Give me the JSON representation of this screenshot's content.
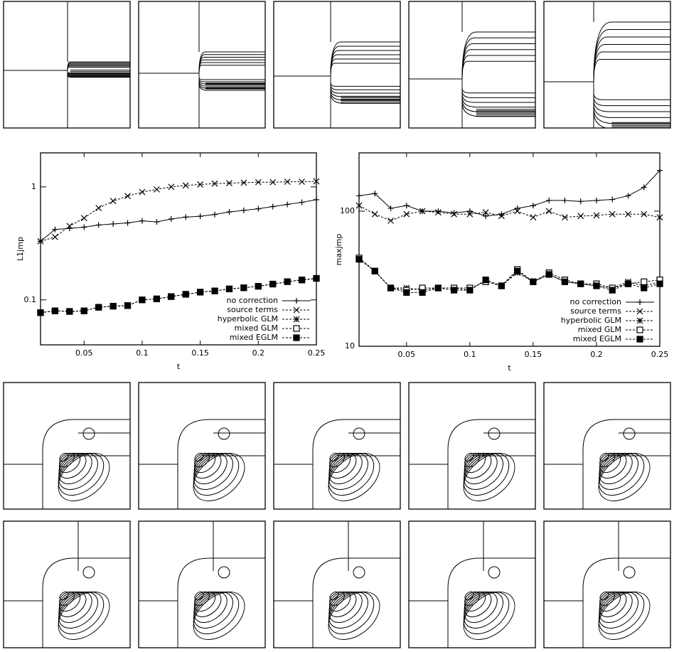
{
  "chart_data": [
    {
      "type": "line",
      "x_label": "t",
      "y_label": "L1jmp",
      "log_y": true,
      "legend": "lower right",
      "x": [
        0.0125,
        0.025,
        0.0375,
        0.05,
        0.0625,
        0.075,
        0.0875,
        0.1,
        0.1125,
        0.125,
        0.1375,
        0.15,
        0.1625,
        0.175,
        0.1875,
        0.2,
        0.2125,
        0.225,
        0.2375,
        0.25
      ],
      "xlim": [
        0.0125,
        0.25
      ],
      "xticks": [
        0.05,
        0.1,
        0.15,
        0.2,
        0.25
      ],
      "ylim": [
        0.04,
        2
      ],
      "yticks": [
        0.1,
        1
      ],
      "series": [
        {
          "name": "no correction",
          "color": "#000000",
          "marker": "plus",
          "line_style": "solid",
          "values": [
            0.33,
            0.42,
            0.43,
            0.44,
            0.46,
            0.47,
            0.48,
            0.5,
            0.49,
            0.52,
            0.54,
            0.55,
            0.57,
            0.6,
            0.62,
            0.64,
            0.67,
            0.7,
            0.73,
            0.77
          ]
        },
        {
          "name": "source terms",
          "color": "#000000",
          "marker": "x",
          "line_style": "dashed",
          "values": [
            0.33,
            0.36,
            0.45,
            0.53,
            0.65,
            0.75,
            0.83,
            0.9,
            0.95,
            1.0,
            1.03,
            1.05,
            1.07,
            1.08,
            1.09,
            1.1,
            1.1,
            1.11,
            1.11,
            1.12
          ]
        },
        {
          "name": "hyperbolic GLM",
          "color": "#000000",
          "marker": "star",
          "line_style": "dashed",
          "values": [
            0.077,
            0.08,
            0.079,
            0.08,
            0.086,
            0.088,
            0.089,
            0.1,
            0.102,
            0.107,
            0.112,
            0.117,
            0.12,
            0.125,
            0.128,
            0.132,
            0.138,
            0.145,
            0.15,
            0.155
          ]
        },
        {
          "name": "mixed GLM",
          "color": "#000000",
          "marker": "square-open",
          "line_style": "dashed",
          "values": [
            0.077,
            0.08,
            0.079,
            0.08,
            0.086,
            0.088,
            0.089,
            0.1,
            0.102,
            0.107,
            0.112,
            0.117,
            0.12,
            0.125,
            0.128,
            0.132,
            0.138,
            0.145,
            0.15,
            0.155
          ]
        },
        {
          "name": "mixed EGLM",
          "color": "#000000",
          "marker": "square-filled",
          "line_style": "dashed",
          "values": [
            0.077,
            0.08,
            0.079,
            0.08,
            0.086,
            0.088,
            0.089,
            0.1,
            0.102,
            0.107,
            0.112,
            0.117,
            0.12,
            0.125,
            0.128,
            0.132,
            0.138,
            0.145,
            0.15,
            0.155
          ]
        }
      ]
    },
    {
      "type": "line",
      "x_label": "t",
      "y_label": "maxjmp",
      "log_y": true,
      "legend": "lower right",
      "x": [
        0.0125,
        0.025,
        0.0375,
        0.05,
        0.0625,
        0.075,
        0.0875,
        0.1,
        0.1125,
        0.125,
        0.1375,
        0.15,
        0.1625,
        0.175,
        0.1875,
        0.2,
        0.2125,
        0.225,
        0.2375,
        0.25
      ],
      "xlim": [
        0.0125,
        0.25
      ],
      "xticks": [
        0.05,
        0.1,
        0.15,
        0.2,
        0.25
      ],
      "ylim": [
        10,
        270
      ],
      "yticks": [
        10,
        100
      ],
      "series": [
        {
          "name": "no correction",
          "color": "#000000",
          "marker": "plus",
          "line_style": "solid",
          "values": [
            130,
            135,
            105,
            110,
            100,
            100,
            97,
            100,
            92,
            95,
            105,
            110,
            120,
            120,
            118,
            120,
            122,
            130,
            150,
            200
          ]
        },
        {
          "name": "source terms",
          "color": "#000000",
          "marker": "x",
          "line_style": "dashed",
          "values": [
            110,
            95,
            85,
            95,
            100,
            98,
            95,
            95,
            98,
            92,
            100,
            90,
            100,
            90,
            92,
            93,
            95,
            95,
            95,
            90
          ]
        },
        {
          "name": "hyperbolic GLM",
          "color": "#000000",
          "marker": "star",
          "line_style": "dashed",
          "values": [
            45,
            36,
            27,
            27,
            26,
            27,
            27,
            26,
            31,
            28,
            35,
            30,
            34,
            30,
            29,
            28,
            27,
            30,
            28,
            30
          ]
        },
        {
          "name": "mixed GLM",
          "color": "#000000",
          "marker": "square-open",
          "line_style": "dashed",
          "values": [
            45,
            36,
            27,
            26,
            27,
            27,
            27,
            27,
            30,
            28,
            37,
            30,
            35,
            31,
            29,
            29,
            27,
            29,
            30,
            31
          ]
        },
        {
          "name": "mixed EGLM",
          "color": "#000000",
          "marker": "square-filled",
          "line_style": "dashed",
          "values": [
            44,
            36,
            27,
            25,
            25,
            27,
            26,
            26,
            31,
            28,
            36,
            30,
            34,
            30,
            29,
            28,
            26,
            29,
            27,
            29
          ]
        }
      ]
    }
  ]
}
